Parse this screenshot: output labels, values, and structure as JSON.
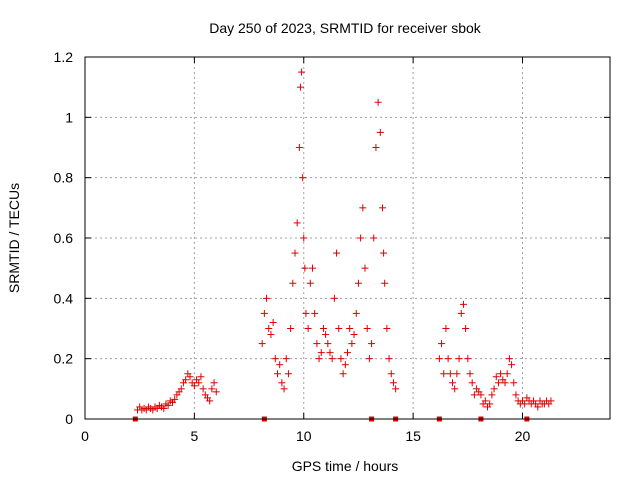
{
  "chart_data": {
    "type": "scatter",
    "title": "Day 250 of 2023, SRMTID for receiver sbok",
    "xlabel": "GPS time / hours",
    "ylabel": "SRMTID / TECUs",
    "xlim": [
      0,
      24
    ],
    "ylim": [
      0,
      1.2
    ],
    "x_ticks": [
      "0",
      "5",
      "10",
      "15",
      "20"
    ],
    "x_tick_values": [
      0,
      5,
      10,
      15,
      20
    ],
    "y_ticks": [
      "0",
      "0.2",
      "0.4",
      "0.6",
      "0.8",
      "1",
      "1.2"
    ],
    "y_tick_values": [
      0,
      0.2,
      0.4,
      0.6,
      0.8,
      1.0,
      1.2
    ],
    "grid": true,
    "marker": "+",
    "series": [
      {
        "name": "SRMTID",
        "color": "#dd0000",
        "x": [
          2.4,
          2.5,
          2.6,
          2.7,
          2.8,
          2.9,
          3.0,
          3.1,
          3.2,
          3.3,
          3.4,
          3.5,
          3.6,
          3.7,
          3.8,
          3.9,
          4.0,
          4.1,
          4.2,
          4.3,
          4.4,
          4.5,
          4.6,
          4.7,
          4.8,
          4.9,
          5.0,
          5.1,
          5.2,
          5.3,
          5.4,
          5.5,
          5.6,
          5.7,
          5.8,
          5.9,
          6.0,
          8.1,
          8.2,
          8.3,
          8.4,
          8.5,
          8.6,
          8.7,
          8.8,
          8.9,
          9.0,
          9.1,
          9.2,
          9.3,
          9.4,
          9.5,
          9.6,
          9.7,
          9.8,
          9.85,
          9.9,
          9.95,
          10.0,
          10.05,
          10.1,
          10.2,
          10.3,
          10.4,
          10.5,
          10.6,
          10.7,
          10.8,
          10.9,
          11.0,
          11.1,
          11.2,
          11.3,
          11.4,
          11.5,
          11.6,
          11.7,
          11.8,
          11.9,
          12.0,
          12.1,
          12.2,
          12.3,
          12.4,
          12.5,
          12.6,
          12.7,
          12.8,
          12.9,
          13.0,
          13.1,
          13.2,
          13.3,
          13.4,
          13.5,
          13.6,
          13.65,
          13.7,
          13.8,
          13.9,
          14.0,
          14.1,
          14.2,
          16.2,
          16.3,
          16.4,
          16.5,
          16.6,
          16.7,
          16.8,
          16.9,
          17.0,
          17.1,
          17.2,
          17.3,
          17.4,
          17.5,
          17.6,
          17.7,
          17.8,
          17.9,
          18.0,
          18.1,
          18.2,
          18.3,
          18.4,
          18.5,
          18.6,
          18.7,
          18.8,
          18.9,
          19.0,
          19.1,
          19.2,
          19.3,
          19.4,
          19.5,
          19.6,
          19.7,
          19.8,
          19.9,
          20.0,
          20.1,
          20.2,
          20.3,
          20.4,
          20.5,
          20.6,
          20.7,
          20.8,
          20.9,
          21.0,
          21.1,
          21.2,
          21.3
        ],
        "y": [
          0.03,
          0.04,
          0.03,
          0.035,
          0.03,
          0.04,
          0.035,
          0.03,
          0.04,
          0.035,
          0.045,
          0.04,
          0.035,
          0.05,
          0.045,
          0.06,
          0.055,
          0.065,
          0.08,
          0.09,
          0.1,
          0.12,
          0.13,
          0.15,
          0.14,
          0.12,
          0.11,
          0.13,
          0.12,
          0.14,
          0.1,
          0.08,
          0.07,
          0.06,
          0.1,
          0.12,
          0.09,
          0.25,
          0.35,
          0.4,
          0.3,
          0.28,
          0.32,
          0.2,
          0.15,
          0.18,
          0.12,
          0.1,
          0.2,
          0.15,
          0.3,
          0.45,
          0.55,
          0.65,
          0.9,
          1.1,
          1.15,
          0.8,
          0.6,
          0.5,
          0.35,
          0.3,
          0.45,
          0.5,
          0.35,
          0.25,
          0.2,
          0.22,
          0.3,
          0.28,
          0.25,
          0.22,
          0.2,
          0.4,
          0.55,
          0.3,
          0.2,
          0.15,
          0.18,
          0.22,
          0.3,
          0.25,
          0.28,
          0.35,
          0.45,
          0.6,
          0.7,
          0.5,
          0.3,
          0.2,
          0.25,
          0.6,
          0.9,
          1.05,
          0.95,
          0.7,
          0.55,
          0.45,
          0.3,
          0.2,
          0.15,
          0.12,
          0.1,
          0.2,
          0.25,
          0.15,
          0.3,
          0.2,
          0.15,
          0.12,
          0.1,
          0.15,
          0.2,
          0.35,
          0.38,
          0.3,
          0.2,
          0.15,
          0.12,
          0.08,
          0.1,
          0.09,
          0.08,
          0.05,
          0.06,
          0.04,
          0.05,
          0.08,
          0.1,
          0.14,
          0.12,
          0.15,
          0.13,
          0.12,
          0.15,
          0.2,
          0.18,
          0.12,
          0.08,
          0.06,
          0.05,
          0.06,
          0.05,
          0.07,
          0.06,
          0.05,
          0.06,
          0.05,
          0.04,
          0.06,
          0.05,
          0.05,
          0.06,
          0.05,
          0.06
        ]
      }
    ],
    "baseline_marks_x": [
      2.3,
      8.2,
      13.1,
      14.2,
      16.2,
      18.1,
      20.2
    ]
  }
}
